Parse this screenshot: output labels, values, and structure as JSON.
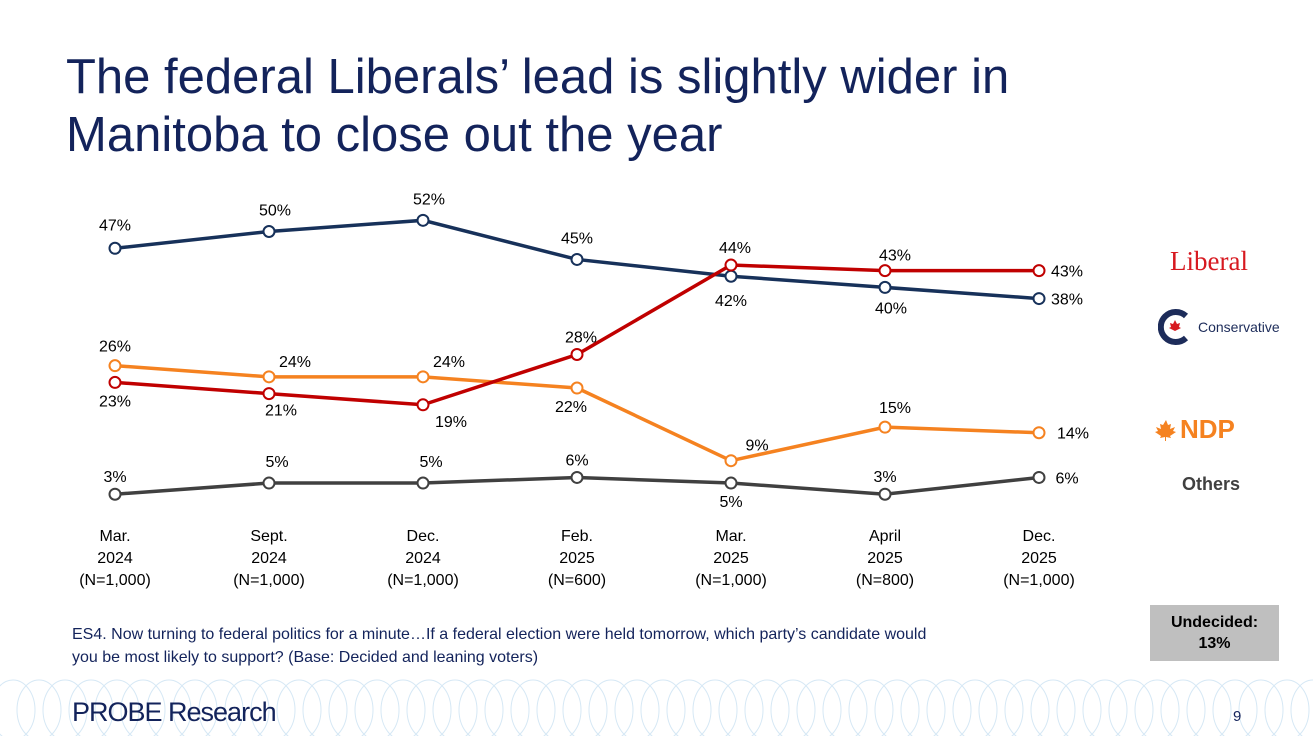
{
  "title": "The federal Liberals’ lead is slightly wider in Manitoba to close out the year",
  "chart_data": {
    "type": "line",
    "categories": [
      [
        "Mar.",
        "2024",
        "(N=1,000)"
      ],
      [
        "Sept.",
        "2024",
        "(N=1,000)"
      ],
      [
        "Dec.",
        "2024",
        "(N=1,000)"
      ],
      [
        "Feb.",
        "2025",
        "(N=600)"
      ],
      [
        "Mar.",
        "2025",
        "(N=1,000)"
      ],
      [
        "April",
        "2025",
        "(N=800)"
      ],
      [
        "Dec.",
        "2025",
        "(N=1,000)"
      ]
    ],
    "series": [
      {
        "name": "Conservative",
        "color": "#17315a",
        "values": [
          47,
          50,
          52,
          45,
          42,
          40,
          38
        ]
      },
      {
        "name": "Liberal",
        "color": "#c00000",
        "values": [
          23,
          21,
          19,
          28,
          44,
          43,
          43
        ]
      },
      {
        "name": "NDP",
        "color": "#f58220",
        "values": [
          26,
          24,
          24,
          22,
          9,
          15,
          14
        ]
      },
      {
        "name": "Others",
        "color": "#404040",
        "values": [
          3,
          5,
          5,
          6,
          5,
          3,
          6
        ]
      }
    ],
    "unit": "%",
    "grid": false,
    "legend": "right"
  },
  "legend": {
    "liberal": "Liberal",
    "conservative": "Conservative",
    "ndp": "NDP",
    "others": "Others"
  },
  "note": "ES4. Now turning to federal politics for a minute…If a federal election were held tomorrow, which party’s candidate would you be most likely to support? (Base: Decided and leaning voters)",
  "undecided": {
    "label": "Undecided:",
    "value": "13%"
  },
  "footer": {
    "logo": "PROBE Research",
    "page": "9"
  }
}
